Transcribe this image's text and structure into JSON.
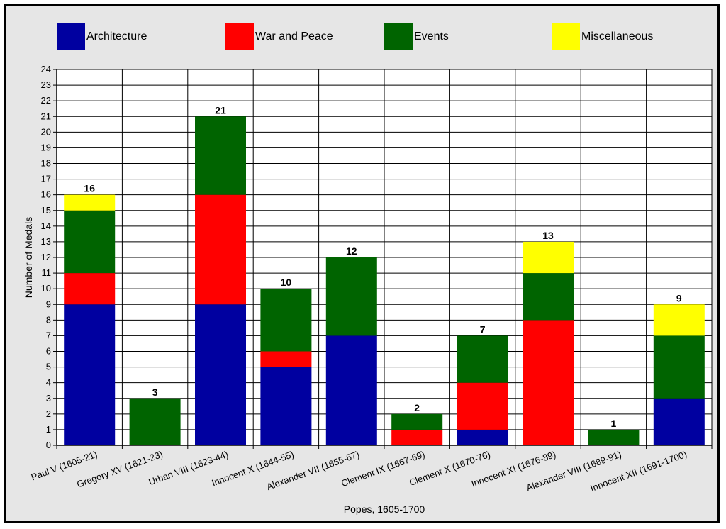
{
  "chart_data": {
    "type": "bar",
    "stacked": true,
    "xlabel": "Popes, 1605-1700",
    "ylabel": "Number of Medals",
    "ylim": [
      0,
      24
    ],
    "ytick_step": 1,
    "grid": true,
    "legend": "top",
    "categories": [
      "Paul V (1605-21)",
      "Gregory XV (1621-23)",
      "Urban VIII (1623-44)",
      "Innocent X (1644-55)",
      "Alexander VII (1655-67)",
      "Clement IX (1667-69)",
      "Clement X (1670-76)",
      "Innocent XI (1676-89)",
      "Alexander VIII (1689-91)",
      "Innocent XII (1691-1700)"
    ],
    "series": [
      {
        "name": "Architecture",
        "color": "#0000a0",
        "values": [
          9,
          0,
          9,
          5,
          7,
          0,
          1,
          0,
          0,
          3
        ]
      },
      {
        "name": "War and Peace",
        "color": "#ff0000",
        "values": [
          2,
          0,
          7,
          1,
          0,
          1,
          3,
          8,
          0,
          0
        ]
      },
      {
        "name": "Events",
        "color": "#006400",
        "values": [
          4,
          3,
          5,
          4,
          5,
          1,
          3,
          3,
          1,
          4
        ]
      },
      {
        "name": "Miscellaneous",
        "color": "#ffff00",
        "values": [
          1,
          0,
          0,
          0,
          0,
          0,
          0,
          2,
          0,
          2
        ]
      }
    ],
    "totals": [
      "16",
      "3",
      "21",
      "10",
      "12",
      "2",
      "7",
      "13",
      "1",
      "9"
    ]
  }
}
